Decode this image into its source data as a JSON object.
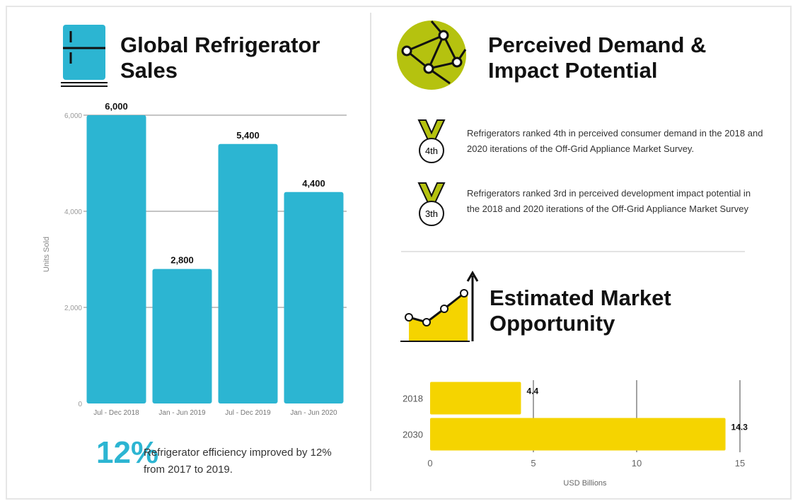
{
  "chart_data": [
    {
      "type": "bar",
      "title": "Global Refrigerator Sales",
      "categories": [
        "Jul - Dec 2018",
        "Jan - Jun 2019",
        "Jul - Dec 2019",
        "Jan - Jun 2020"
      ],
      "values": [
        6000,
        2800,
        5400,
        4400
      ],
      "value_labels": [
        "6,000",
        "2,800",
        "5,400",
        "4,400"
      ],
      "color": "#2cb5d2",
      "ylabel": "Units Sold",
      "ylim": [
        0,
        6000
      ],
      "yticks": [
        0,
        {
          "value": 2000,
          "label": "2,000"
        },
        {
          "value": 4000,
          "label": "4,000"
        },
        {
          "value": 6000,
          "label": "6,000"
        }
      ],
      "grid": true
    },
    {
      "type": "barh",
      "title": "Estimated Market Opportunity",
      "categories": [
        "2018",
        "2030"
      ],
      "values": [
        4.4,
        14.3
      ],
      "color": "#f5d400",
      "xlabel": "USD Billions",
      "xlim": [
        0,
        15
      ],
      "xticks": [
        0,
        5,
        10,
        15
      ],
      "grid": true
    }
  ],
  "stat": {
    "figure": "12%",
    "text": "Refrigerator efficiency improved by 12% from 2017 to 2019."
  },
  "demand": {
    "title": "Perceived Demand & Impact Potential",
    "items": [
      {
        "badge": "4th",
        "text": "Refrigerators ranked 4th in perceived consumer demand in the 2018 and 2020 iterations of the Off-Grid Appliance Market Survey."
      },
      {
        "badge": "3th",
        "text": "Refrigerators ranked 3rd in perceived development impact potential in  the 2018 and 2020 iterations of the Off-Grid Appliance Market Survey"
      }
    ]
  }
}
